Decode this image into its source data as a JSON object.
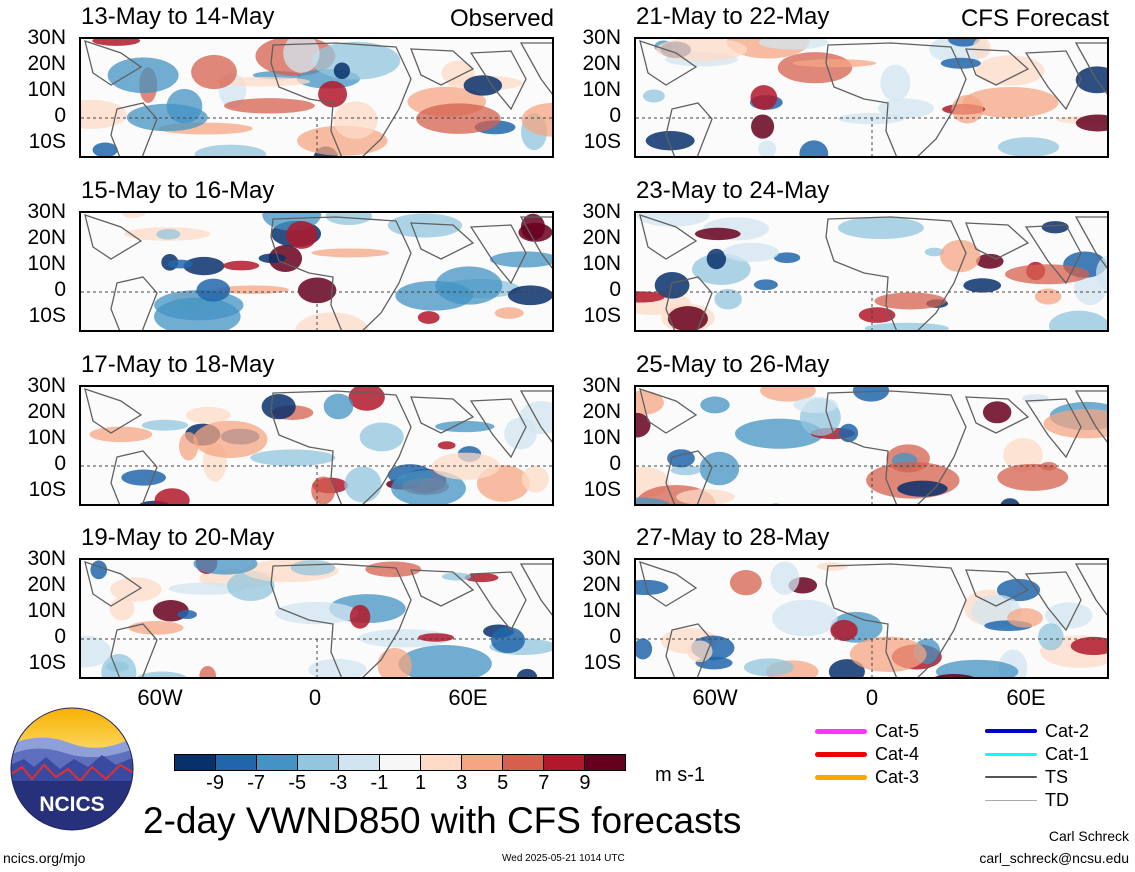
{
  "panels": [
    {
      "date": "13-May to 14-May",
      "tag": "Observed",
      "seed": 1
    },
    {
      "date": "21-May to 22-May",
      "tag": "CFS Forecast",
      "seed": 2
    },
    {
      "date": "15-May to 16-May",
      "tag": "",
      "seed": 3
    },
    {
      "date": "23-May to 24-May",
      "tag": "",
      "seed": 4
    },
    {
      "date": "17-May to 18-May",
      "tag": "",
      "seed": 5
    },
    {
      "date": "25-May to 26-May",
      "tag": "",
      "seed": 6
    },
    {
      "date": "19-May to 20-May",
      "tag": "",
      "seed": 7
    },
    {
      "date": "27-May to 28-May",
      "tag": "",
      "seed": 8
    }
  ],
  "lat_labels": [
    "30N",
    "20N",
    "10N",
    "0",
    "10S"
  ],
  "lon_labels": [
    "60W",
    "0",
    "60E"
  ],
  "colorbar": {
    "colors": [
      "#08306b",
      "#2166ac",
      "#4393c3",
      "#92c5de",
      "#d1e5f0",
      "#f7f7f7",
      "#fddbc7",
      "#f4a582",
      "#d6604d",
      "#b2182b",
      "#67001f"
    ],
    "ticks": [
      "-9",
      "-7",
      "-5",
      "-3",
      "-1",
      "1",
      "3",
      "5",
      "7",
      "9"
    ],
    "units": "m s-1"
  },
  "legend": [
    {
      "label": "Cat-5",
      "color": "#ff33ff",
      "width": 5
    },
    {
      "label": "Cat-4",
      "color": "#ee0000",
      "width": 5
    },
    {
      "label": "Cat-3",
      "color": "#ffa500",
      "width": 5
    },
    {
      "label": "Cat-2",
      "color": "#0000cc",
      "width": 4
    },
    {
      "label": "Cat-1",
      "color": "#00ffff",
      "width": 3
    },
    {
      "label": "TS",
      "color": "#555555",
      "width": 2
    },
    {
      "label": "TD",
      "color": "#aaaaaa",
      "width": 1
    }
  ],
  "title": "2-day VWND850 with CFS forecasts",
  "logo_text": "NCICS",
  "footer": {
    "url": "ncics.org/mjo",
    "timestamp": "Wed 2025-05-21 1014 UTC",
    "author": "Carl Schreck",
    "email": "carl_schreck@ncsu.edu"
  }
}
